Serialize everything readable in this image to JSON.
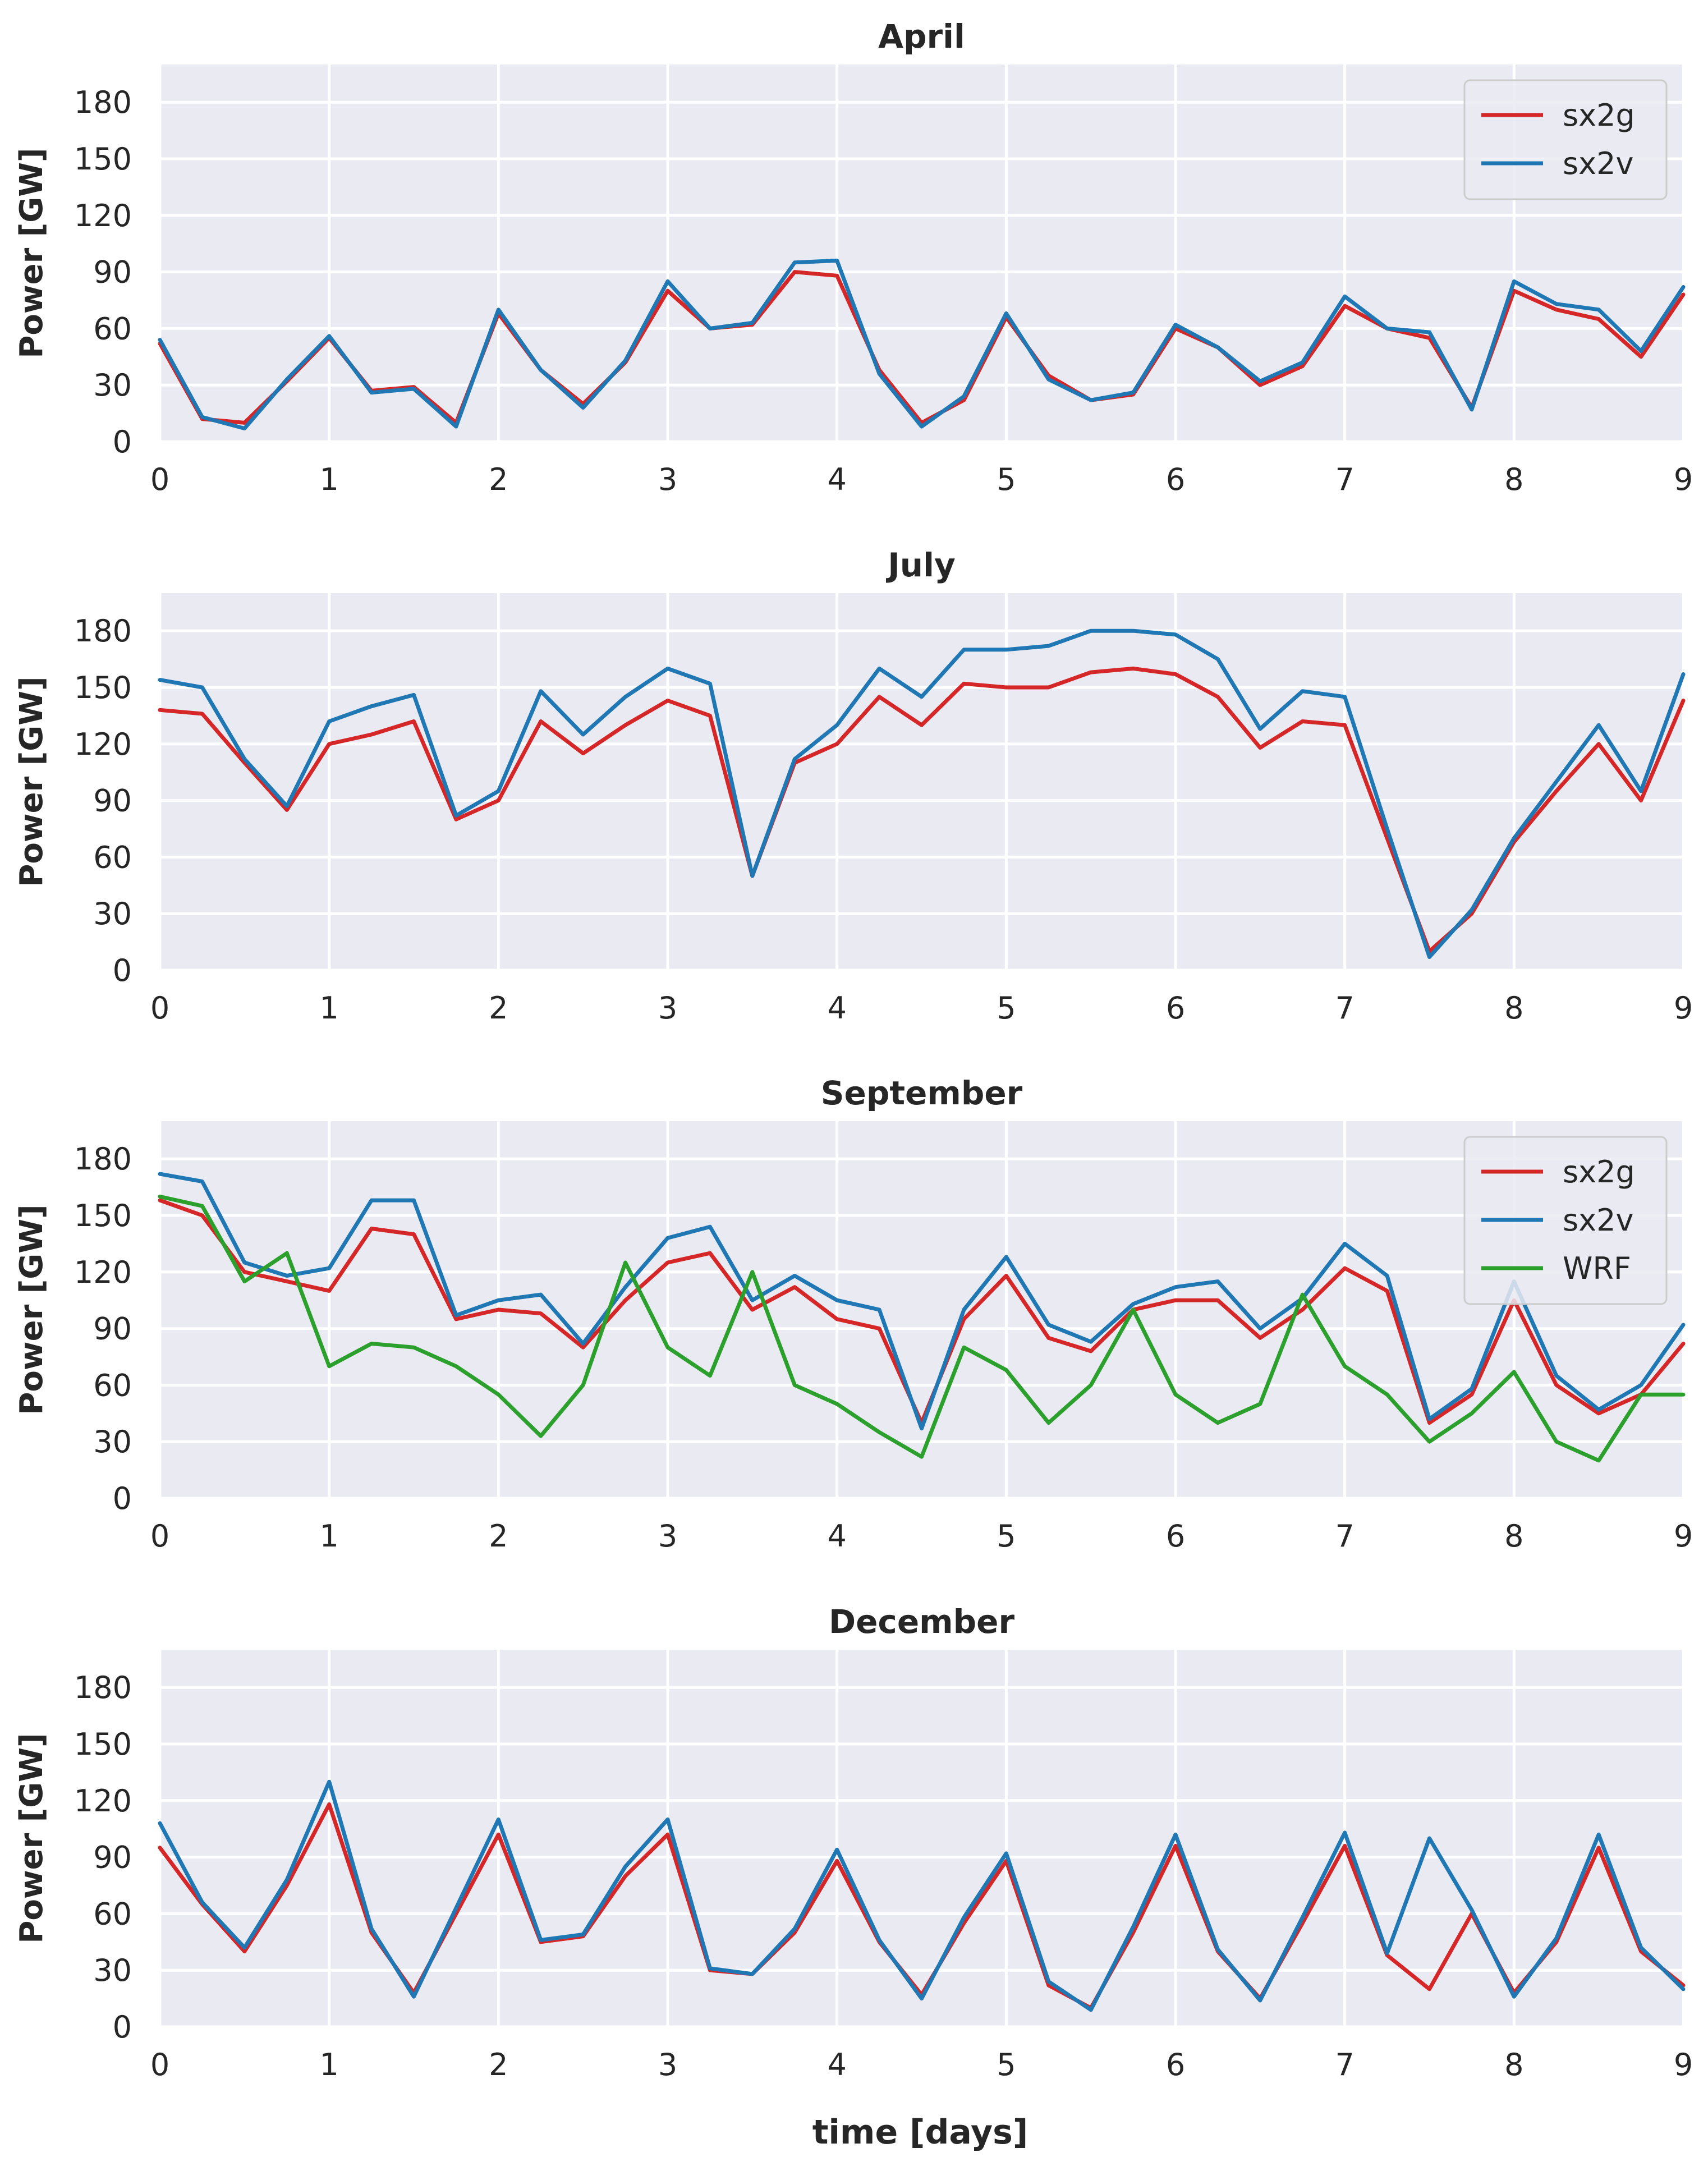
{
  "colors": {
    "sx2g": "#d62728",
    "sx2v": "#1f77b4",
    "WRF": "#2ca02c",
    "background": "#eaeaf2",
    "grid": "#ffffff",
    "text": "#262626"
  },
  "xlabel": "time [days]",
  "chart_data": [
    {
      "type": "line",
      "title": "April",
      "ylabel": "Power [GW]",
      "xlim": [
        0,
        9
      ],
      "ylim": [
        0,
        200
      ],
      "xticks": [
        "0",
        "1",
        "2",
        "3",
        "4",
        "5",
        "6",
        "7",
        "8",
        "9"
      ],
      "yticks": [
        "0",
        "30",
        "60",
        "90",
        "120",
        "150",
        "180"
      ],
      "legend": [
        "sx2g",
        "sx2v"
      ],
      "legend_position": "top-right",
      "x": [
        0,
        0.25,
        0.5,
        0.75,
        1,
        1.25,
        1.5,
        1.75,
        2,
        2.25,
        2.5,
        2.75,
        3,
        3.25,
        3.5,
        3.75,
        4,
        4.25,
        4.5,
        4.75,
        5,
        5.25,
        5.5,
        5.75,
        6,
        6.25,
        6.5,
        6.75,
        7,
        7.25,
        7.5,
        7.75,
        8,
        8.25,
        8.5,
        8.75,
        9
      ],
      "series": [
        {
          "name": "sx2g",
          "values": [
            52,
            12,
            10,
            32,
            55,
            27,
            29,
            10,
            68,
            38,
            20,
            42,
            80,
            60,
            62,
            90,
            88,
            38,
            10,
            22,
            66,
            35,
            22,
            25,
            60,
            50,
            30,
            40,
            72,
            60,
            55,
            18,
            80,
            70,
            65,
            45,
            78
          ]
        },
        {
          "name": "sx2v",
          "values": [
            54,
            13,
            7,
            33,
            56,
            26,
            28,
            8,
            70,
            38,
            18,
            43,
            85,
            60,
            63,
            95,
            96,
            36,
            8,
            24,
            68,
            33,
            22,
            26,
            62,
            50,
            32,
            42,
            77,
            60,
            58,
            17,
            85,
            73,
            70,
            48,
            82
          ]
        }
      ]
    },
    {
      "type": "line",
      "title": "July",
      "ylabel": "Power [GW]",
      "xlim": [
        0,
        9
      ],
      "ylim": [
        0,
        200
      ],
      "xticks": [
        "0",
        "1",
        "2",
        "3",
        "4",
        "5",
        "6",
        "7",
        "8",
        "9"
      ],
      "yticks": [
        "0",
        "30",
        "60",
        "90",
        "120",
        "150",
        "180"
      ],
      "x": [
        0,
        0.25,
        0.5,
        0.75,
        1,
        1.25,
        1.5,
        1.75,
        2,
        2.25,
        2.5,
        2.75,
        3,
        3.25,
        3.5,
        3.75,
        4,
        4.25,
        4.5,
        4.75,
        5,
        5.25,
        5.5,
        5.75,
        6,
        6.25,
        6.5,
        6.75,
        7,
        7.25,
        7.5,
        7.75,
        8,
        8.25,
        8.5,
        8.75,
        9
      ],
      "series": [
        {
          "name": "sx2g",
          "values": [
            138,
            136,
            110,
            85,
            120,
            125,
            132,
            80,
            90,
            132,
            115,
            130,
            143,
            135,
            50,
            110,
            120,
            145,
            130,
            152,
            150,
            150,
            158,
            160,
            157,
            145,
            118,
            132,
            130,
            70,
            10,
            30,
            68,
            95,
            120,
            90,
            143
          ]
        },
        {
          "name": "sx2v",
          "values": [
            154,
            150,
            112,
            87,
            132,
            140,
            146,
            82,
            95,
            148,
            125,
            145,
            160,
            152,
            50,
            112,
            130,
            160,
            145,
            170,
            170,
            172,
            180,
            180,
            178,
            165,
            128,
            148,
            145,
            75,
            7,
            32,
            70,
            100,
            130,
            95,
            157
          ]
        }
      ]
    },
    {
      "type": "line",
      "title": "September",
      "ylabel": "Power [GW]",
      "xlim": [
        0,
        9
      ],
      "ylim": [
        0,
        200
      ],
      "xticks": [
        "0",
        "1",
        "2",
        "3",
        "4",
        "5",
        "6",
        "7",
        "8",
        "9"
      ],
      "yticks": [
        "0",
        "30",
        "60",
        "90",
        "120",
        "150",
        "180"
      ],
      "legend": [
        "sx2g",
        "sx2v",
        "WRF"
      ],
      "legend_position": "top-right",
      "x": [
        0,
        0.25,
        0.5,
        0.75,
        1,
        1.25,
        1.5,
        1.75,
        2,
        2.25,
        2.5,
        2.75,
        3,
        3.25,
        3.5,
        3.75,
        4,
        4.25,
        4.5,
        4.75,
        5,
        5.25,
        5.5,
        5.75,
        6,
        6.25,
        6.5,
        6.75,
        7,
        7.25,
        7.5,
        7.75,
        8,
        8.25,
        8.5,
        8.75,
        9
      ],
      "series": [
        {
          "name": "sx2g",
          "values": [
            158,
            150,
            120,
            115,
            110,
            143,
            140,
            95,
            100,
            98,
            80,
            105,
            125,
            130,
            100,
            112,
            95,
            90,
            40,
            95,
            118,
            85,
            78,
            100,
            105,
            105,
            85,
            100,
            122,
            110,
            40,
            55,
            105,
            60,
            45,
            55,
            82
          ]
        },
        {
          "name": "sx2v",
          "values": [
            172,
            168,
            125,
            118,
            122,
            158,
            158,
            97,
            105,
            108,
            82,
            112,
            138,
            144,
            105,
            118,
            105,
            100,
            37,
            100,
            128,
            92,
            83,
            103,
            112,
            115,
            90,
            106,
            135,
            118,
            42,
            58,
            115,
            65,
            47,
            60,
            92
          ]
        },
        {
          "name": "WRF",
          "values": [
            160,
            155,
            115,
            130,
            70,
            82,
            80,
            70,
            55,
            33,
            60,
            125,
            80,
            65,
            120,
            60,
            50,
            35,
            22,
            80,
            68,
            40,
            60,
            100,
            55,
            40,
            50,
            108,
            70,
            55,
            30,
            45,
            67,
            30,
            20,
            55,
            55
          ]
        }
      ]
    },
    {
      "type": "line",
      "title": "December",
      "ylabel": "Power [GW]",
      "xlim": [
        0,
        9
      ],
      "ylim": [
        0,
        200
      ],
      "xticks": [
        "0",
        "1",
        "2",
        "3",
        "4",
        "5",
        "6",
        "7",
        "8",
        "9"
      ],
      "yticks": [
        "0",
        "30",
        "60",
        "90",
        "120",
        "150",
        "180"
      ],
      "x": [
        0,
        0.25,
        0.5,
        0.75,
        1,
        1.25,
        1.5,
        1.75,
        2,
        2.25,
        2.5,
        2.75,
        3,
        3.25,
        3.5,
        3.75,
        4,
        4.25,
        4.5,
        4.75,
        5,
        5.25,
        5.5,
        5.75,
        6,
        6.25,
        6.5,
        6.75,
        7,
        7.25,
        7.5,
        7.75,
        8,
        8.25,
        8.5,
        8.75,
        9
      ],
      "series": [
        {
          "name": "sx2g",
          "values": [
            95,
            65,
            40,
            75,
            118,
            50,
            18,
            60,
            102,
            45,
            48,
            80,
            102,
            30,
            28,
            50,
            88,
            45,
            17,
            55,
            88,
            22,
            10,
            50,
            96,
            40,
            15,
            55,
            96,
            38,
            20,
            60,
            18,
            45,
            95,
            40,
            22
          ]
        },
        {
          "name": "sx2v",
          "values": [
            108,
            66,
            42,
            78,
            130,
            52,
            16,
            63,
            110,
            46,
            49,
            85,
            110,
            31,
            28,
            52,
            94,
            46,
            15,
            58,
            92,
            24,
            9,
            53,
            102,
            41,
            14,
            58,
            103,
            39,
            100,
            62,
            16,
            47,
            102,
            42,
            20
          ]
        }
      ]
    }
  ]
}
